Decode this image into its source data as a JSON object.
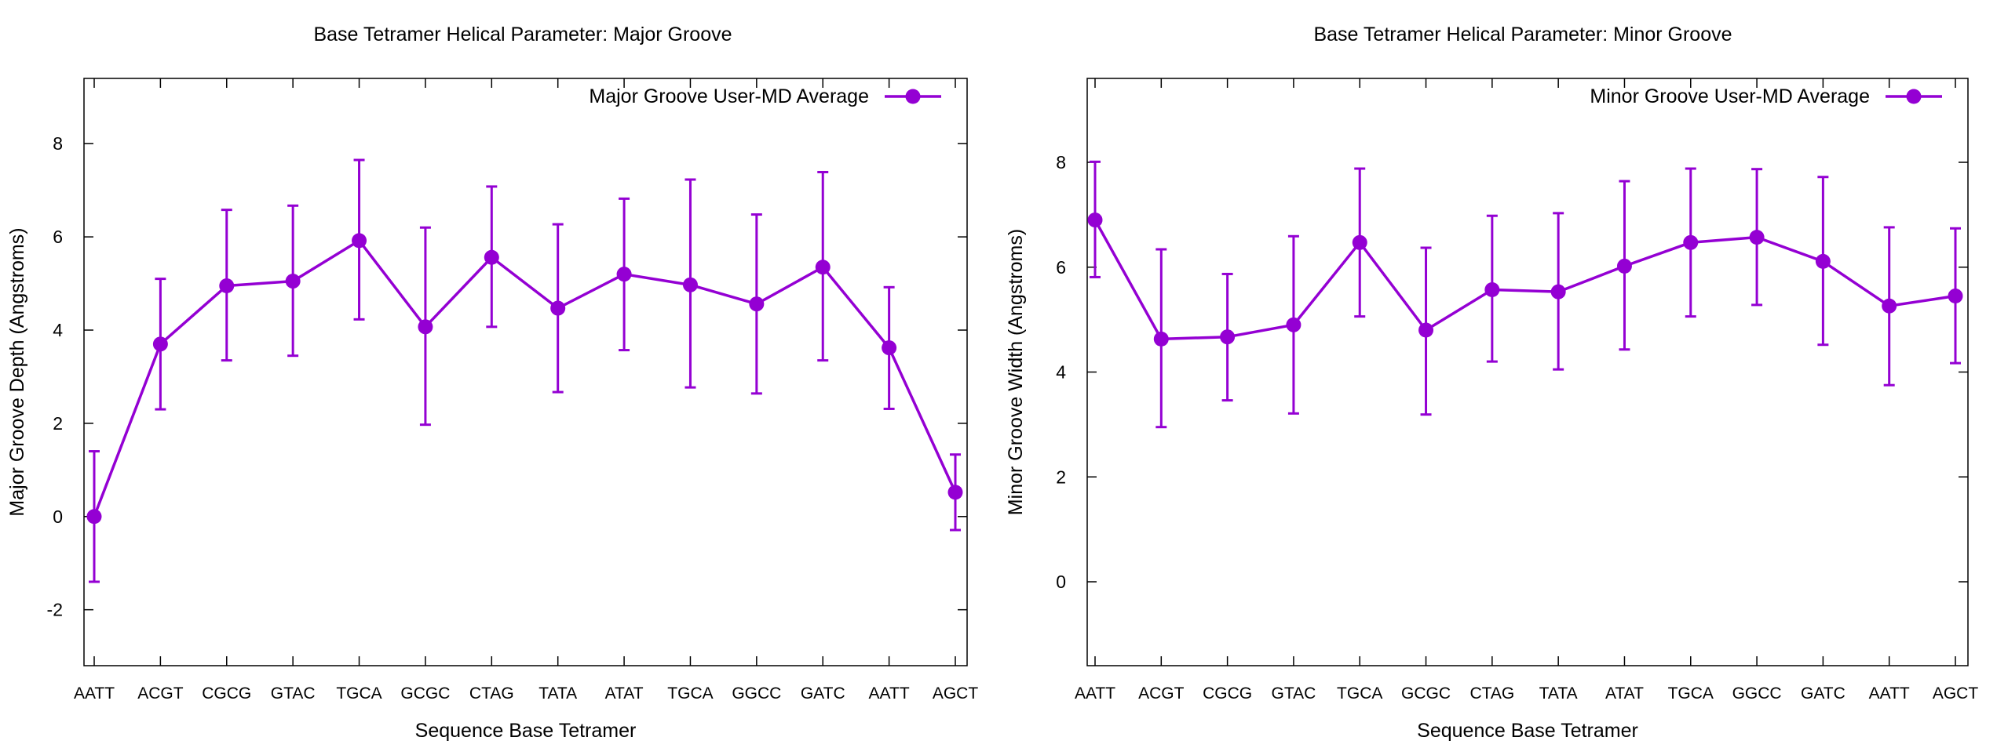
{
  "colors": {
    "series": "#9400d3",
    "frame": "#000000",
    "background": "#ffffff"
  },
  "chart_data": [
    {
      "type": "line",
      "title": "Base Tetramer Helical Parameter: Major Groove",
      "xlabel": "Sequence Base Tetramer",
      "ylabel": "Major Groove Depth (Angstroms)",
      "ylim": [
        -3.2,
        9.4
      ],
      "yticks": [
        "-2",
        "0",
        "2",
        "4",
        "6",
        "8"
      ],
      "ytick_values": [
        -2,
        0,
        2,
        4,
        6,
        8
      ],
      "grid": false,
      "legend": "top-right",
      "categories": [
        "AATT",
        "ACGT",
        "CGCG",
        "GTAC",
        "TGCA",
        "GCGC",
        "CTAG",
        "TATA",
        "ATAT",
        "TGCA",
        "GGCC",
        "GATC",
        "AATT",
        "AGCT"
      ],
      "series": [
        {
          "name": "Major Groove User-MD Average",
          "values": [
            0.0,
            3.7,
            4.95,
            5.05,
            5.92,
            4.07,
            5.56,
            4.47,
            5.2,
            4.97,
            4.56,
            5.35,
            3.62,
            0.52
          ],
          "error_low": [
            -1.4,
            2.3,
            3.35,
            3.45,
            4.23,
            1.97,
            4.07,
            2.67,
            3.57,
            2.77,
            2.64,
            3.35,
            2.31,
            -0.29
          ],
          "error_high": [
            1.4,
            5.1,
            6.58,
            6.67,
            7.65,
            6.2,
            7.08,
            6.27,
            6.82,
            7.23,
            6.48,
            7.39,
            4.92,
            1.33
          ]
        }
      ]
    },
    {
      "type": "line",
      "title": "Base Tetramer Helical Parameter: Minor Groove",
      "xlabel": "Sequence Base Tetramer",
      "ylabel": "Minor Groove Width (Angstroms)",
      "ylim": [
        -1.6,
        9.6
      ],
      "yticks": [
        "0",
        "2",
        "4",
        "6",
        "8"
      ],
      "ytick_values": [
        0,
        2,
        4,
        6,
        8
      ],
      "grid": false,
      "legend": "top-right",
      "categories": [
        "AATT",
        "ACGT",
        "CGCG",
        "GTAC",
        "TGCA",
        "GCGC",
        "CTAG",
        "TATA",
        "ATAT",
        "TGCA",
        "GGCC",
        "GATC",
        "AATT",
        "AGCT"
      ],
      "series": [
        {
          "name": "Minor Groove User-MD Average",
          "values": [
            6.9,
            4.63,
            4.67,
            4.9,
            6.47,
            4.8,
            5.57,
            5.53,
            6.02,
            6.47,
            6.57,
            6.11,
            5.26,
            5.45
          ],
          "error_low": [
            5.81,
            2.95,
            3.46,
            3.21,
            5.06,
            3.19,
            4.2,
            4.05,
            4.43,
            5.06,
            5.28,
            4.52,
            3.75,
            4.17
          ],
          "error_high": [
            8.01,
            6.34,
            5.87,
            6.59,
            7.88,
            6.37,
            6.98,
            7.03,
            7.64,
            7.88,
            7.87,
            7.72,
            6.76,
            6.74
          ]
        }
      ]
    }
  ]
}
